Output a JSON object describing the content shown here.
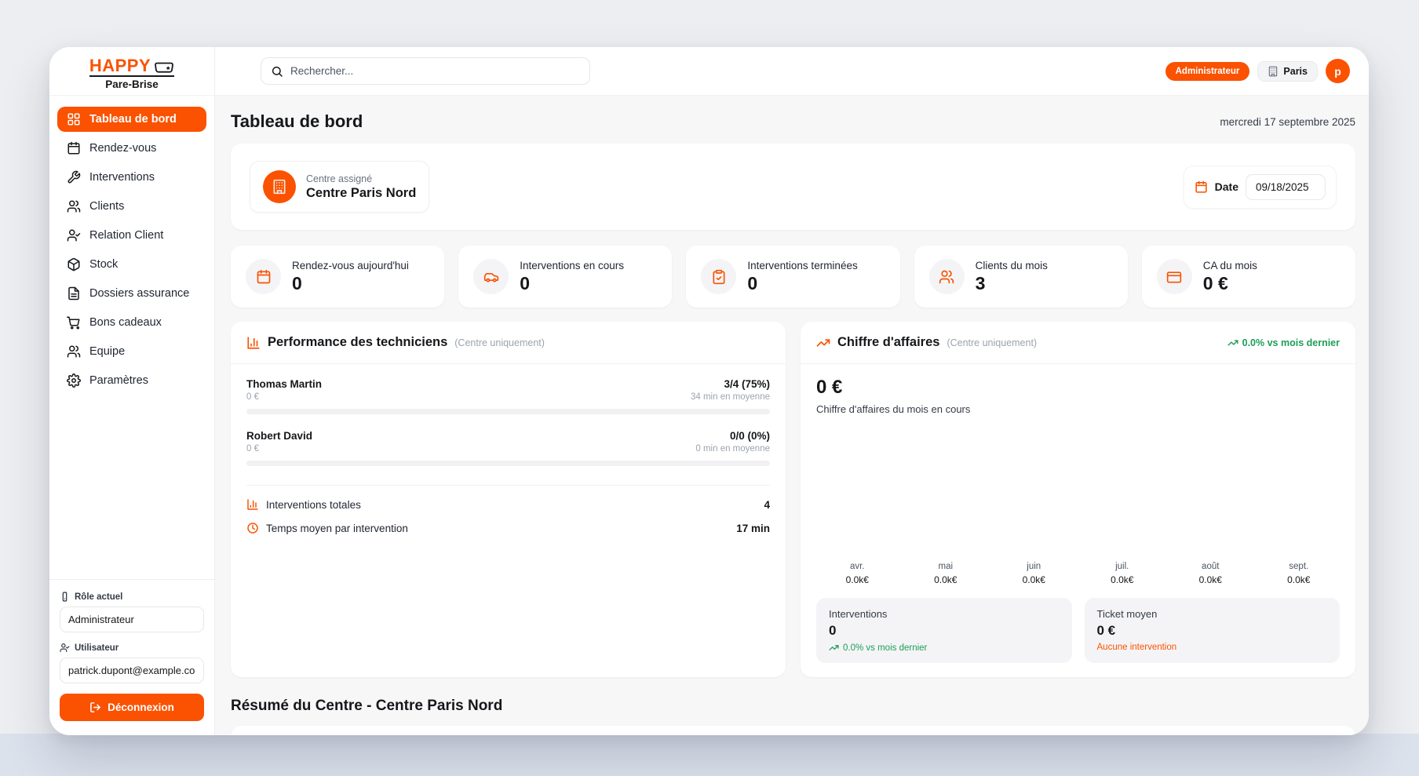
{
  "colors": {
    "accent": "#FA5200",
    "green": "#1D9E57",
    "content_bg": "#F7F7F8"
  },
  "brand": {
    "name": "HAPPY",
    "sub": "Pare-Brise",
    "logo_icon": "windshield-icon"
  },
  "topbar": {
    "search_placeholder": "Rechercher...",
    "role_badge": "Administrateur",
    "location": "Paris",
    "avatar_letter": "p"
  },
  "sidebar": {
    "items": [
      {
        "label": "Tableau de bord",
        "icon": "grid",
        "active": true
      },
      {
        "label": "Rendez-vous",
        "icon": "calendar",
        "active": false
      },
      {
        "label": "Interventions",
        "icon": "wrench",
        "active": false
      },
      {
        "label": "Clients",
        "icon": "users",
        "active": false
      },
      {
        "label": "Relation Client",
        "icon": "user-check",
        "active": false
      },
      {
        "label": "Stock",
        "icon": "package",
        "active": false
      },
      {
        "label": "Dossiers assurance",
        "icon": "file-text",
        "active": false
      },
      {
        "label": "Bons cadeaux",
        "icon": "cart",
        "active": false
      },
      {
        "label": "Equipe",
        "icon": "users",
        "active": false
      },
      {
        "label": "Paramètres",
        "icon": "settings",
        "active": false
      }
    ],
    "role_label": "Rôle actuel",
    "role_value": "Administrateur",
    "user_label": "Utilisateur",
    "user_value": "patrick.dupont@example.com",
    "logout_label": "Déconnexion"
  },
  "page": {
    "title": "Tableau de bord",
    "date": "mercredi 17 septembre 2025"
  },
  "center_card": {
    "label": "Centre assigné",
    "name": "Centre Paris Nord",
    "icon": "building",
    "date_label": "Date",
    "date_value": "09/18/2025"
  },
  "stats": [
    {
      "label": "Rendez-vous aujourd'hui",
      "value": "0",
      "icon": "calendar"
    },
    {
      "label": "Interventions en cours",
      "value": "0",
      "icon": "car"
    },
    {
      "label": "Interventions terminées",
      "value": "0",
      "icon": "clipboard-check"
    },
    {
      "label": "Clients du mois",
      "value": "3",
      "icon": "users"
    },
    {
      "label": "CA du mois",
      "value": "0 €",
      "icon": "credit-card"
    }
  ],
  "performance": {
    "title": "Performance des techniciens",
    "subtitle": "(Centre uniquement)",
    "icon": "bar-chart",
    "technicians": [
      {
        "name": "Thomas Martin",
        "revenue": "0 €",
        "ratio": "3/4 (75%)",
        "avg": "34 min en moyenne",
        "progress_pct": 0
      },
      {
        "name": "Robert David",
        "revenue": "0 €",
        "ratio": "0/0 (0%)",
        "avg": "0 min en moyenne",
        "progress_pct": 0
      }
    ],
    "totals": [
      {
        "label": "Interventions totales",
        "value": "4",
        "icon": "bar-chart"
      },
      {
        "label": "Temps moyen par intervention",
        "value": "17 min",
        "icon": "clock"
      }
    ]
  },
  "revenue": {
    "title": "Chiffre d'affaires",
    "subtitle": "(Centre uniquement)",
    "icon": "trending-up",
    "trend": "0.0% vs mois dernier",
    "amount": "0 €",
    "caption": "Chiffre d'affaires du mois en cours",
    "chart_data": {
      "type": "bar",
      "categories": [
        "avr.",
        "mai",
        "juin",
        "juil.",
        "août",
        "sept."
      ],
      "values": [
        0,
        0,
        0,
        0,
        0,
        0
      ],
      "value_labels": [
        "0.0k€",
        "0.0k€",
        "0.0k€",
        "0.0k€",
        "0.0k€",
        "0.0k€"
      ],
      "unit": "k€",
      "ylim": [
        0,
        1
      ],
      "grid": false,
      "legend": false
    },
    "boxes": [
      {
        "label": "Interventions",
        "value": "0",
        "note": "0.0% vs mois dernier",
        "note_color": "green",
        "note_icon": "trending-up"
      },
      {
        "label": "Ticket moyen",
        "value": "0 €",
        "note": "Aucune intervention",
        "note_color": "orange",
        "note_icon": ""
      }
    ]
  },
  "summary_title": "Résumé du Centre - Centre Paris Nord"
}
